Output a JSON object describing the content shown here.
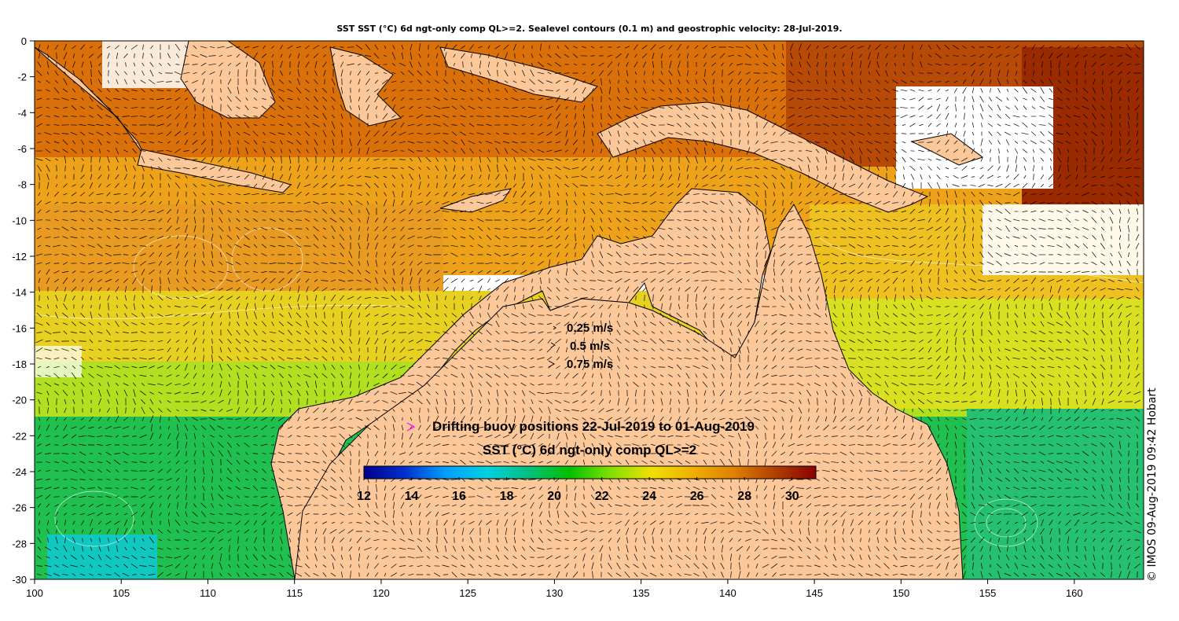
{
  "title": "SST SST (°C) 6d ngt-only comp QL>=2. Sealevel contours (0.1 m) and geostrophic velocity: 28-Jul-2019.",
  "x_axis": {
    "ticks": [
      "100",
      "105",
      "110",
      "115",
      "120",
      "125",
      "130",
      "135",
      "140",
      "145",
      "150",
      "155",
      "160"
    ]
  },
  "y_axis": {
    "ticks": [
      "0",
      "-2",
      "-4",
      "-6",
      "-8",
      "-10",
      "-12",
      "-14",
      "-16",
      "-18",
      "-20",
      "-22",
      "-24",
      "-26",
      "-28",
      "-30"
    ]
  },
  "velocity_key": {
    "items": [
      "0.25 m/s",
      "0.5 m/s",
      "0.75 m/s"
    ]
  },
  "buoy_legend": {
    "text": "Drifting buoy positions 22-Jul-2019 to 01-Aug-2019",
    "color": "#ff00ff"
  },
  "colorbar": {
    "title": "SST (°C) 6d ngt-only comp QL>=2",
    "min": 12,
    "max": 31,
    "tick_labels": [
      "12",
      "14",
      "16",
      "18",
      "20",
      "22",
      "24",
      "26",
      "28",
      "30"
    ],
    "colors": [
      "#00008b",
      "#0030d0",
      "#00a0ff",
      "#00d0e0",
      "#00c080",
      "#00c000",
      "#80e000",
      "#f0e000",
      "#f0b000",
      "#e08000",
      "#b04000",
      "#8b0000"
    ]
  },
  "land_color": "#fcc89a",
  "credit": "© IMOS 09-Aug-2019 09:42 Hobart"
}
